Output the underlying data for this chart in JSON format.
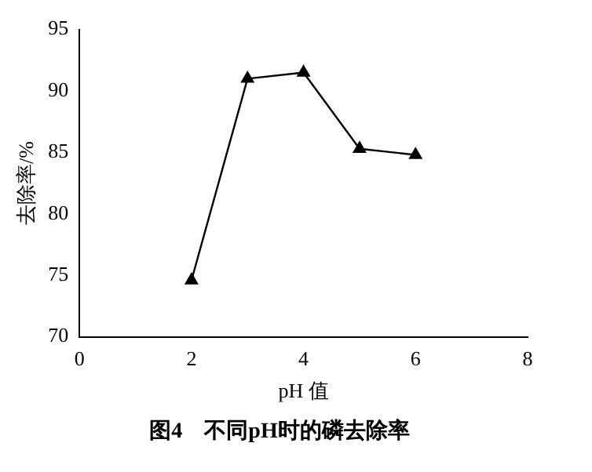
{
  "chart_data": {
    "type": "line",
    "title": "图4　不同pH时的磷去除率",
    "xlabel": "pH 值",
    "ylabel": "去除率/%",
    "x": [
      2,
      3,
      4,
      5,
      6
    ],
    "series": [
      {
        "color": "#000000",
        "values": [
          74.6,
          91.0,
          91.5,
          85.3,
          84.8
        ]
      }
    ],
    "xlim": [
      0,
      8
    ],
    "xticks": [
      0,
      2,
      4,
      6,
      8
    ],
    "ylim": [
      70,
      95
    ],
    "yticks": [
      70,
      75,
      80,
      85,
      90,
      95
    ],
    "grid": false,
    "legend": false,
    "marker": "triangle",
    "line_style": "solid"
  }
}
